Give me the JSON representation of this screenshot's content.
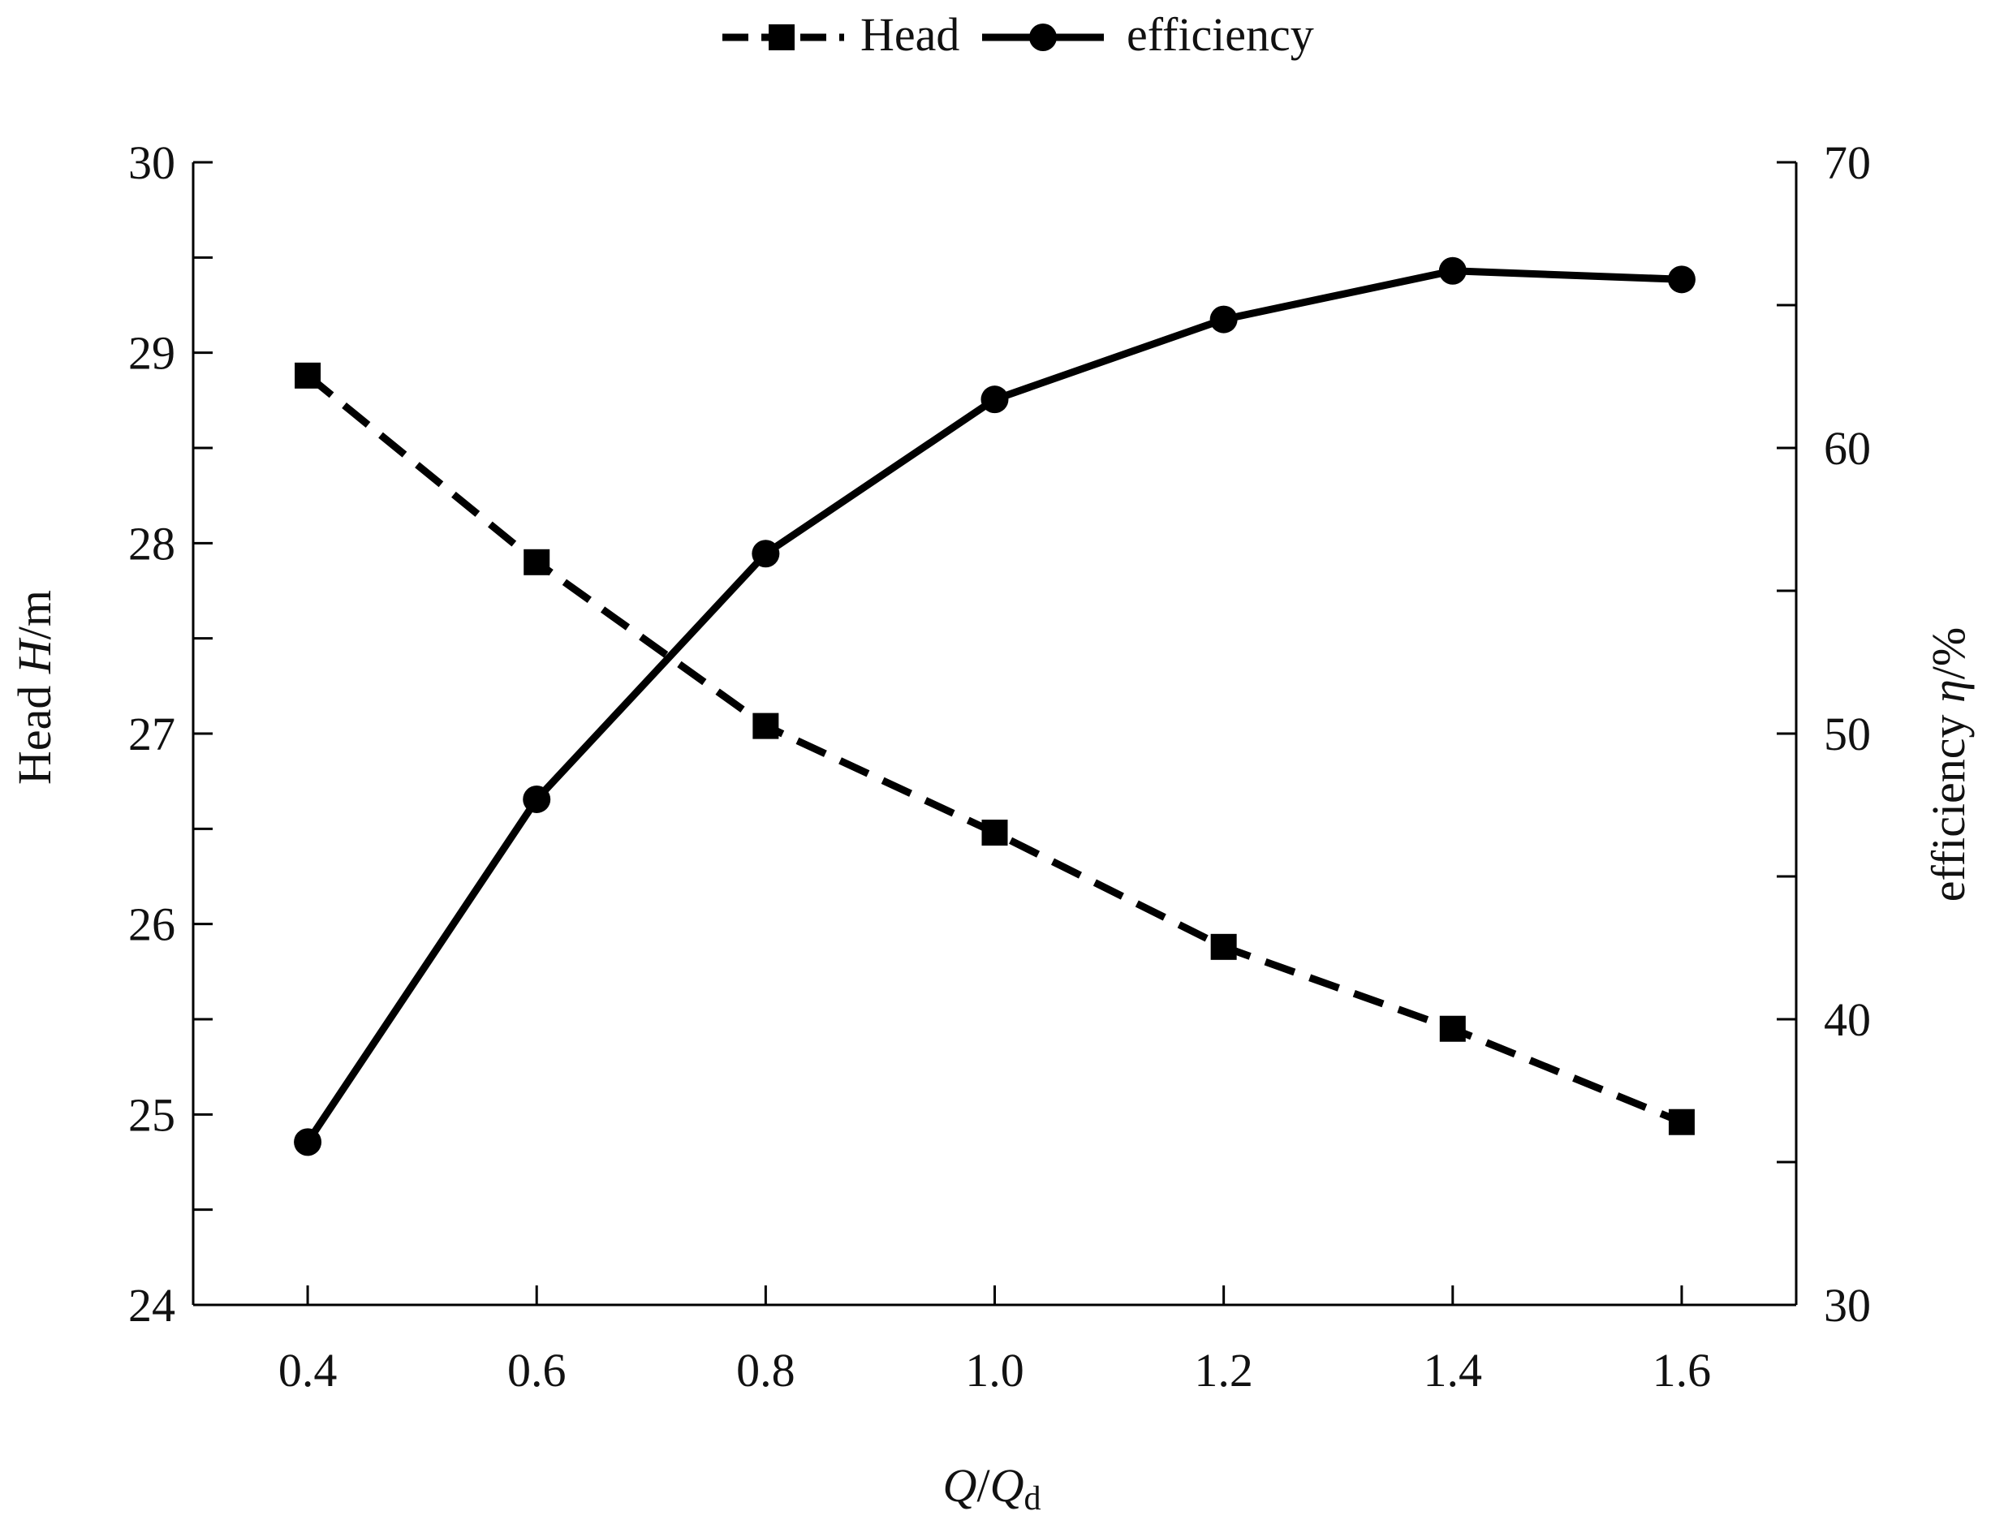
{
  "chart_data": {
    "type": "line",
    "title": "",
    "x": [
      0.4,
      0.6,
      0.8,
      1.0,
      1.2,
      1.4,
      1.6
    ],
    "x_tick_labels": [
      "0.4",
      "0.6",
      "0.8",
      "1.0",
      "1.2",
      "1.4",
      "1.6"
    ],
    "xlim": [
      0.3,
      1.7
    ],
    "xlabel": {
      "q": "Q",
      "slash": "/",
      "qd": "Q",
      "sub": "d"
    },
    "y_left": {
      "label_text": "Head",
      "label_symbol": "H",
      "label_unit": "/m",
      "ylim": [
        24,
        30
      ],
      "ticks": [
        24,
        25,
        26,
        27,
        28,
        29,
        30
      ],
      "tick_labels": [
        "24",
        "25",
        "26",
        "27",
        "28",
        "29",
        "30"
      ]
    },
    "y_right": {
      "label_text": "efficiency",
      "label_symbol": "η",
      "label_unit": "/%",
      "ylim": [
        30,
        70
      ],
      "ticks": [
        30,
        40,
        50,
        60,
        70
      ],
      "tick_labels": [
        "30",
        "40",
        "50",
        "60",
        "70"
      ]
    },
    "series": [
      {
        "name": "Head",
        "axis": "left",
        "marker": "square",
        "line_style": "dashed",
        "color": "#000000",
        "values": [
          28.88,
          27.9,
          27.04,
          26.48,
          25.88,
          25.45,
          24.96
        ]
      },
      {
        "name": "efficiency",
        "axis": "right",
        "marker": "circle",
        "line_style": "solid",
        "color": "#000000",
        "values": [
          35.7,
          47.7,
          56.3,
          61.7,
          64.5,
          66.2,
          65.9
        ]
      }
    ],
    "legend": {
      "placement": "top-center",
      "labels": [
        "Head",
        "efficiency"
      ]
    },
    "grid": false
  }
}
